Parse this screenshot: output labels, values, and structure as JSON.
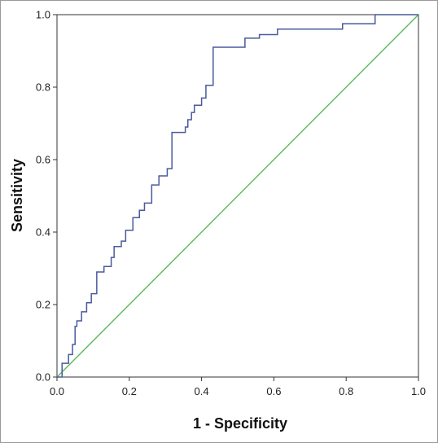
{
  "chart_data": {
    "type": "line",
    "xlabel": "1 - Specificity",
    "ylabel": "Sensitivity",
    "xlim": [
      0.0,
      1.0
    ],
    "ylim": [
      0.0,
      1.0
    ],
    "x_ticks": [
      "0.0",
      "0.2",
      "0.4",
      "0.6",
      "0.8",
      "1.0"
    ],
    "y_ticks": [
      "0.0",
      "0.2",
      "0.4",
      "0.6",
      "0.8",
      "1.0"
    ],
    "grid": false,
    "colors": {
      "roc": "#4a5a9c",
      "reference": "#5cb85c"
    },
    "series": [
      {
        "style": "step",
        "x": [
          0.0,
          0.014,
          0.014,
          0.032,
          0.032,
          0.043,
          0.043,
          0.05,
          0.05,
          0.055,
          0.055,
          0.068,
          0.068,
          0.082,
          0.082,
          0.095,
          0.095,
          0.11,
          0.11,
          0.13,
          0.13,
          0.15,
          0.15,
          0.158,
          0.158,
          0.178,
          0.178,
          0.19,
          0.19,
          0.21,
          0.21,
          0.228,
          0.228,
          0.242,
          0.242,
          0.262,
          0.262,
          0.282,
          0.282,
          0.305,
          0.305,
          0.318,
          0.318,
          0.355,
          0.355,
          0.362,
          0.362,
          0.372,
          0.372,
          0.38,
          0.38,
          0.4,
          0.4,
          0.412,
          0.412,
          0.432,
          0.432,
          0.444,
          0.444,
          0.52,
          0.52,
          0.56,
          0.56,
          0.61,
          0.61,
          0.635,
          0.635,
          0.79,
          0.79,
          0.88,
          0.88,
          1.0
        ],
        "y": [
          0.0,
          0.0,
          0.038,
          0.038,
          0.062,
          0.062,
          0.09,
          0.09,
          0.14,
          0.14,
          0.155,
          0.155,
          0.18,
          0.18,
          0.205,
          0.205,
          0.23,
          0.23,
          0.29,
          0.29,
          0.305,
          0.305,
          0.33,
          0.33,
          0.36,
          0.36,
          0.375,
          0.375,
          0.405,
          0.405,
          0.44,
          0.44,
          0.46,
          0.46,
          0.48,
          0.48,
          0.53,
          0.53,
          0.555,
          0.555,
          0.575,
          0.575,
          0.675,
          0.675,
          0.69,
          0.69,
          0.71,
          0.71,
          0.73,
          0.73,
          0.75,
          0.75,
          0.77,
          0.77,
          0.805,
          0.805,
          0.91,
          0.91,
          0.91,
          0.91,
          0.935,
          0.935,
          0.945,
          0.945,
          0.96,
          0.96,
          0.96,
          0.96,
          0.975,
          0.975,
          1.0,
          1.0
        ]
      },
      {
        "style": "reference",
        "x": [
          0.0,
          1.0
        ],
        "y": [
          0.0,
          1.0
        ]
      }
    ]
  }
}
